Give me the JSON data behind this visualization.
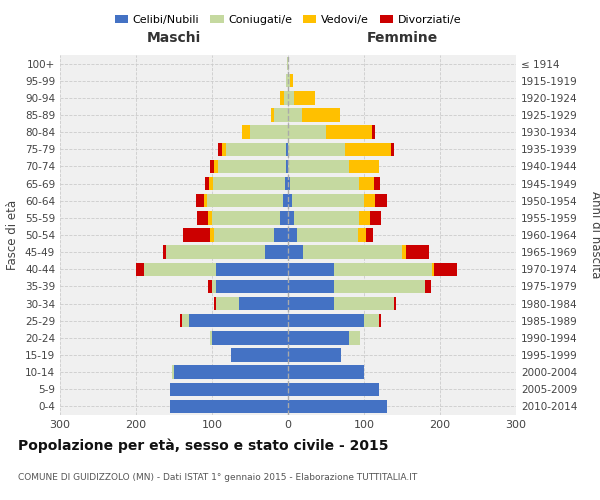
{
  "age_groups": [
    "0-4",
    "5-9",
    "10-14",
    "15-19",
    "20-24",
    "25-29",
    "30-34",
    "35-39",
    "40-44",
    "45-49",
    "50-54",
    "55-59",
    "60-64",
    "65-69",
    "70-74",
    "75-79",
    "80-84",
    "85-89",
    "90-94",
    "95-99",
    "100+"
  ],
  "birth_years": [
    "2010-2014",
    "2005-2009",
    "2000-2004",
    "1995-1999",
    "1990-1994",
    "1985-1989",
    "1980-1984",
    "1975-1979",
    "1970-1974",
    "1965-1969",
    "1960-1964",
    "1955-1959",
    "1950-1954",
    "1945-1949",
    "1940-1944",
    "1935-1939",
    "1930-1934",
    "1925-1929",
    "1920-1924",
    "1915-1919",
    "≤ 1914"
  ],
  "males": {
    "celibi": [
      155,
      155,
      150,
      75,
      100,
      130,
      65,
      95,
      95,
      30,
      18,
      10,
      6,
      4,
      2,
      2,
      0,
      0,
      0,
      0,
      0
    ],
    "coniugati": [
      0,
      0,
      2,
      0,
      3,
      10,
      30,
      5,
      95,
      130,
      80,
      90,
      100,
      95,
      90,
      80,
      50,
      18,
      5,
      2,
      1
    ],
    "vedovi": [
      0,
      0,
      0,
      0,
      0,
      0,
      0,
      0,
      0,
      0,
      5,
      5,
      5,
      5,
      5,
      5,
      10,
      5,
      5,
      0,
      0
    ],
    "divorziati": [
      0,
      0,
      0,
      0,
      0,
      2,
      3,
      5,
      10,
      5,
      35,
      15,
      10,
      5,
      5,
      5,
      0,
      0,
      0,
      0,
      0
    ]
  },
  "females": {
    "nubili": [
      130,
      120,
      100,
      70,
      80,
      100,
      60,
      60,
      60,
      20,
      12,
      8,
      5,
      3,
      0,
      0,
      0,
      0,
      0,
      0,
      0
    ],
    "coniugate": [
      0,
      0,
      0,
      0,
      15,
      20,
      80,
      120,
      130,
      130,
      80,
      85,
      95,
      90,
      80,
      75,
      50,
      18,
      8,
      2,
      0
    ],
    "vedove": [
      0,
      0,
      0,
      0,
      0,
      0,
      0,
      0,
      2,
      5,
      10,
      15,
      15,
      20,
      40,
      60,
      60,
      50,
      28,
      5,
      0
    ],
    "divorziate": [
      0,
      0,
      0,
      0,
      0,
      3,
      2,
      8,
      30,
      30,
      10,
      15,
      15,
      8,
      0,
      5,
      5,
      0,
      0,
      0,
      0
    ]
  },
  "colors": {
    "celibi": "#4472c4",
    "coniugati": "#c5d9a0",
    "vedovi": "#ffc000",
    "divorziati": "#cc0000"
  },
  "title": "Popolazione per età, sesso e stato civile - 2015",
  "subtitle": "COMUNE DI GUIDIZZOLO (MN) - Dati ISTAT 1° gennaio 2015 - Elaborazione TUTTITALIA.IT",
  "xlabel_left": "Maschi",
  "xlabel_right": "Femmine",
  "ylabel_left": "Fasce di età",
  "ylabel_right": "Anni di nascita",
  "xlim": 300,
  "bg_color": "#f0f0f0",
  "grid_color": "#cccccc"
}
